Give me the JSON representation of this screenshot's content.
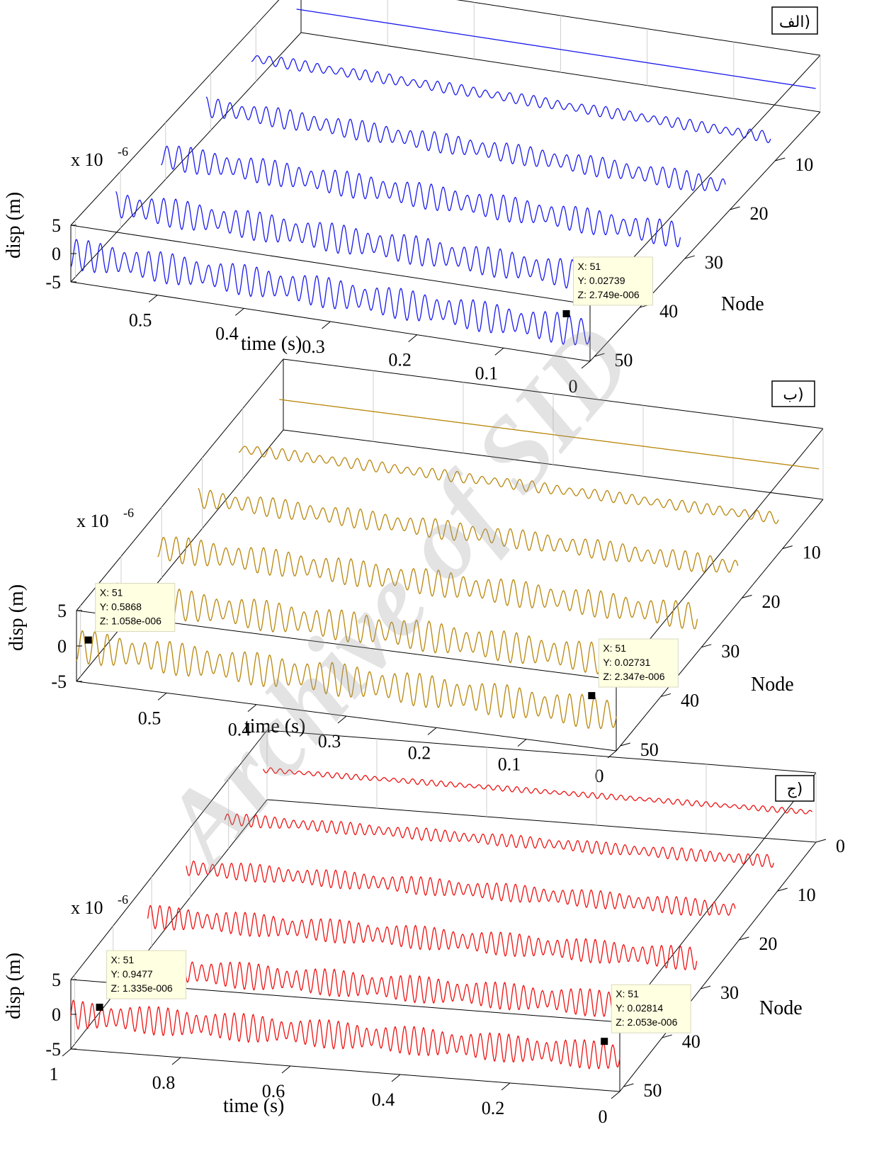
{
  "watermark": "Archive of SID",
  "chart_data": [
    {
      "type": "line",
      "panel_label": "الف)",
      "line_color": "#1a1aee",
      "xlabel": "Node",
      "ylabel": "time (s)",
      "zlabel": "disp (m)",
      "z_exponent": "x 10",
      "z_exponent_power": "-6",
      "x_ticks": [
        "10",
        "20",
        "30",
        "40",
        "50"
      ],
      "y_ticks": [
        "0",
        "0.1",
        "0.2",
        "0.3",
        "0.4",
        "0.5"
      ],
      "z_ticks": [
        "5",
        "0",
        "-5"
      ],
      "xlim": [
        0,
        51
      ],
      "ylim": [
        0,
        0.6
      ],
      "zlim": [
        -5e-06,
        5e-06
      ],
      "series_nodes": [
        1,
        11,
        21,
        31,
        41,
        51
      ],
      "series_amplitude_e6": [
        0,
        1.0,
        1.8,
        2.3,
        2.6,
        2.75
      ],
      "datatip": {
        "x_label": "X: 51",
        "y_label": "Y: 0.02739",
        "z_label": "Z: 2.749e-006",
        "x": 51,
        "y": 0.02739,
        "z": 2.749e-06
      }
    },
    {
      "type": "line",
      "panel_label": "ب)",
      "line_color": "#b8860b",
      "xlabel": "Node",
      "ylabel": "time (s)",
      "zlabel": "disp (m)",
      "z_exponent": "x 10",
      "z_exponent_power": "-6",
      "x_ticks": [
        "10",
        "20",
        "30",
        "40",
        "50"
      ],
      "y_ticks": [
        "0",
        "0.1",
        "0.2",
        "0.3",
        "0.4",
        "0.5"
      ],
      "z_ticks": [
        "5",
        "0",
        "-5"
      ],
      "xlim": [
        0,
        51
      ],
      "ylim": [
        0,
        0.6
      ],
      "zlim": [
        -5e-06,
        5e-06
      ],
      "series_nodes": [
        1,
        11,
        21,
        31,
        41,
        51
      ],
      "series_amplitude_e6": [
        0,
        0.8,
        1.4,
        1.9,
        2.2,
        2.35
      ],
      "datatips": [
        {
          "x_label": "X: 51",
          "y_label": "Y: 0.5868",
          "z_label": "Z: 1.058e-006",
          "x": 51,
          "y": 0.5868,
          "z": 1.058e-06
        },
        {
          "x_label": "X: 51",
          "y_label": "Y: 0.02731",
          "z_label": "Z: 2.347e-006",
          "x": 51,
          "y": 0.02731,
          "z": 2.347e-06
        }
      ]
    },
    {
      "type": "line",
      "panel_label": "ج)",
      "line_color": "#ee1111",
      "xlabel": "Node",
      "ylabel": "time (s)",
      "zlabel": "disp (m)",
      "z_exponent": "x 10",
      "z_exponent_power": "-6",
      "x_ticks": [
        "0",
        "10",
        "20",
        "30",
        "40",
        "50"
      ],
      "y_ticks": [
        "0",
        "0.2",
        "0.4",
        "0.6",
        "0.8",
        "1"
      ],
      "z_ticks": [
        "5",
        "0",
        "-5"
      ],
      "xlim": [
        0,
        51
      ],
      "ylim": [
        0,
        1.0
      ],
      "zlim": [
        -5e-06,
        5e-06
      ],
      "series_nodes": [
        1,
        11,
        21,
        31,
        41,
        51
      ],
      "series_amplitude_e6": [
        0.4,
        0.9,
        1.3,
        1.7,
        1.95,
        2.05
      ],
      "datatips": [
        {
          "x_label": "X: 51",
          "y_label": "Y: 0.9477",
          "z_label": "Z: 1.335e-006",
          "x": 51,
          "y": 0.9477,
          "z": 1.335e-06
        },
        {
          "x_label": "X: 51",
          "y_label": "Y: 0.02814",
          "z_label": "Z: 2.053e-006",
          "x": 51,
          "y": 0.02814,
          "z": 2.053e-06
        }
      ]
    }
  ]
}
